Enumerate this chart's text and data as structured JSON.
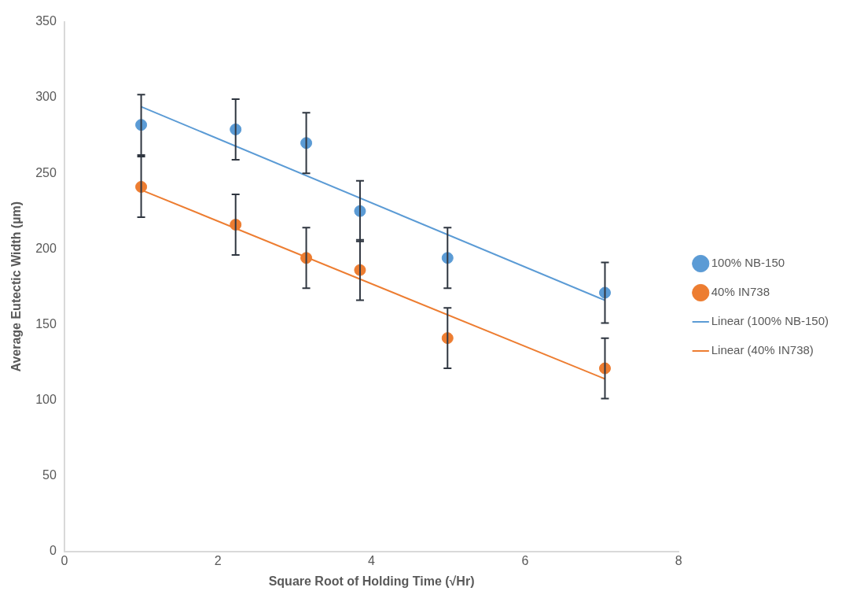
{
  "chart_data": {
    "type": "scatter",
    "xlabel": "Square Root of Holding Time (√Hr)",
    "ylabel": "Average Eutectic Width (µm)",
    "xlim": [
      0,
      8
    ],
    "xticks": [
      0,
      2,
      4,
      6,
      8
    ],
    "ylim": [
      0,
      350
    ],
    "yticks": [
      0,
      50,
      100,
      150,
      200,
      250,
      300,
      350
    ],
    "grid": false,
    "legend": "right",
    "series": [
      {
        "name": "100% NB-150",
        "type": "scatter",
        "marker": "circle",
        "color": "#5b9bd5",
        "x": [
          1.0,
          2.23,
          3.15,
          3.85,
          4.99,
          7.04
        ],
        "values": [
          282,
          279,
          270,
          225,
          194,
          171
        ],
        "errors": [
          20,
          20,
          20,
          20,
          20,
          20
        ]
      },
      {
        "name": "40% IN738",
        "type": "scatter",
        "marker": "circle",
        "color": "#ed7d31",
        "x": [
          1.0,
          2.23,
          3.15,
          3.85,
          4.99,
          7.04
        ],
        "values": [
          241,
          216,
          194,
          186,
          141,
          121
        ],
        "errors": [
          20,
          20,
          20,
          20,
          20,
          20
        ]
      },
      {
        "name": "Linear (100% NB-150)",
        "type": "line",
        "marker": "none",
        "color": "#5b9bd5",
        "x": [
          1.0,
          7.04
        ],
        "values": [
          294,
          166
        ]
      },
      {
        "name": "Linear (40% IN738)",
        "type": "line",
        "marker": "none",
        "color": "#ed7d31",
        "x": [
          1.0,
          7.04
        ],
        "values": [
          239,
          114
        ]
      }
    ]
  }
}
